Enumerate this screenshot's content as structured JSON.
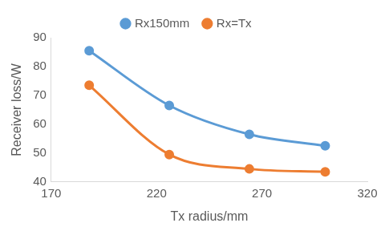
{
  "chart_data": {
    "type": "line",
    "x_label": "Tx radius/mm",
    "y_label": "Receiver loss/W",
    "x": [
      188,
      226,
      264,
      300
    ],
    "series": [
      {
        "name": "Rx150mm",
        "color": "#5b9bd5",
        "marker": "circle",
        "values": [
          85.5,
          66.5,
          56.5,
          52.5
        ]
      },
      {
        "name": "Rx=Tx",
        "color": "#ed7d31",
        "marker": "circle",
        "values": [
          73.5,
          49.5,
          44.5,
          43.5
        ]
      }
    ],
    "xlim": [
      170,
      320
    ],
    "xticks": [
      170,
      220,
      270,
      320
    ],
    "ylim": [
      40,
      90
    ],
    "yticks": [
      40,
      50,
      60,
      70,
      80,
      90
    ],
    "grid": false,
    "legend": "top"
  }
}
